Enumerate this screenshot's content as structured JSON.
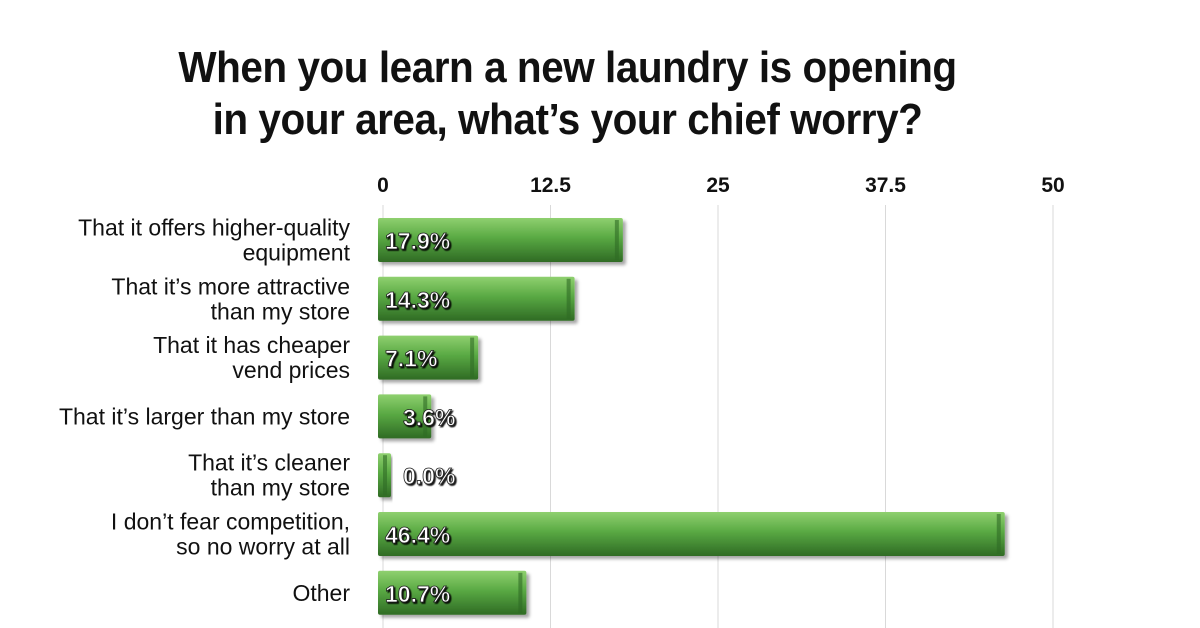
{
  "chart_data": {
    "type": "bar",
    "orientation": "horizontal",
    "title_lines": [
      "When you learn a new laundry is opening",
      "in your area, what’s your chief worry?"
    ],
    "xlim": [
      0,
      50
    ],
    "xticks": [
      "0",
      "12.5",
      "25",
      "37.5",
      "50"
    ],
    "xtick_values": [
      0,
      12.5,
      25,
      37.5,
      50
    ],
    "grid": true,
    "categories": [
      [
        "That it offers higher-quality",
        "equipment"
      ],
      [
        "That it’s more attractive",
        "than my store"
      ],
      [
        "That it has cheaper",
        "vend prices"
      ],
      [
        "That it’s larger than my store"
      ],
      [
        "That it’s cleaner",
        "than my store"
      ],
      [
        "I don’t fear competition,",
        "so no worry at all"
      ],
      [
        "Other"
      ]
    ],
    "values": [
      17.9,
      14.3,
      7.1,
      3.6,
      0.0,
      46.4,
      10.7
    ],
    "data_labels": [
      "17.9%",
      "14.3%",
      "7.1%",
      "3.6%",
      "0.0%",
      "46.4%",
      "10.7%"
    ],
    "colors": {
      "bar": "#4e9a3c",
      "bar_light": "#7cc45e",
      "bar_dark": "#2f6b24",
      "grid": "#d9d9d9"
    }
  }
}
